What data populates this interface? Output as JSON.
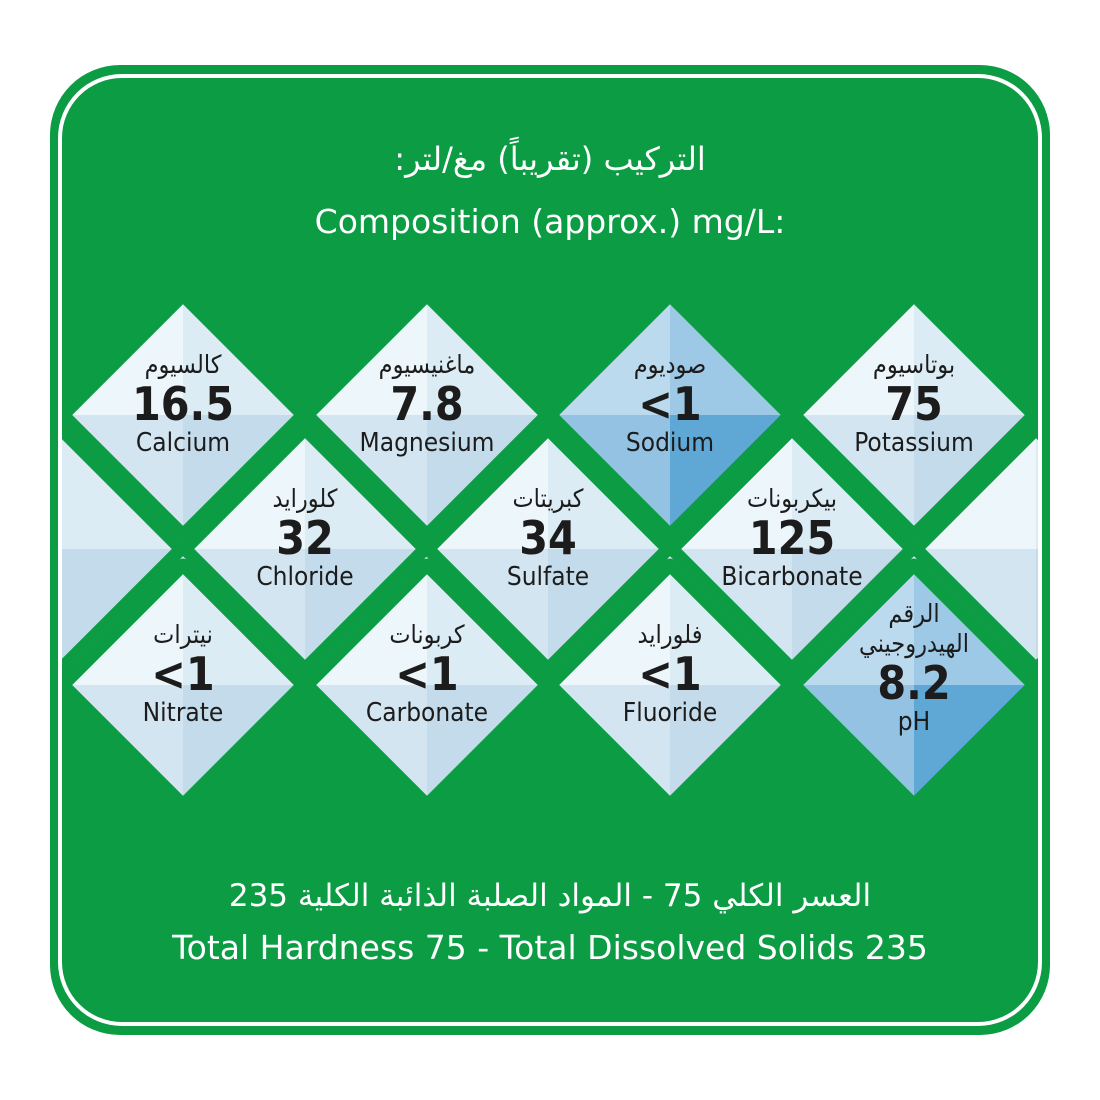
{
  "header": {
    "title_ar": "التركيب (تقريباً) مغ/لتر:",
    "title_en": "Composition (approx.) mg/L:"
  },
  "colors": {
    "green": "#0b9c44",
    "light": "#e3f0f8",
    "blue": "#7fb9e0"
  },
  "minerals": [
    {
      "ar": "كالسيوم",
      "value": "16.5",
      "en": "Calcium",
      "style": "light"
    },
    {
      "ar": "ماغنيسيوم",
      "value": "7.8",
      "en": "Magnesium",
      "style": "light"
    },
    {
      "ar": "صوديوم",
      "value": "<1",
      "en": "Sodium",
      "style": "blue"
    },
    {
      "ar": "بوتاسيوم",
      "value": "75",
      "en": "Potassium",
      "style": "light"
    },
    {
      "ar": "كلورايد",
      "value": "32",
      "en": "Chloride",
      "style": "light"
    },
    {
      "ar": "كبريتات",
      "value": "34",
      "en": "Sulfate",
      "style": "light"
    },
    {
      "ar": "بيكربونات",
      "value": "125",
      "en": "Bicarbonate",
      "style": "light"
    },
    {
      "ar": "نيترات",
      "value": "<1",
      "en": "Nitrate",
      "style": "light"
    },
    {
      "ar": "كربونات",
      "value": "<1",
      "en": "Carbonate",
      "style": "light"
    },
    {
      "ar": "فلورايد",
      "value": "<1",
      "en": "Fluoride",
      "style": "light"
    },
    {
      "ar": "الرقم الهيدروجيني",
      "value": "8.2",
      "en": "pH",
      "style": "blue"
    }
  ],
  "footer": {
    "text_ar": "العسر الكلي 75 - المواد الصلبة الذائبة الكلية 235",
    "text_en": "Total Hardness 75 - Total Dissolved Solids 235"
  }
}
